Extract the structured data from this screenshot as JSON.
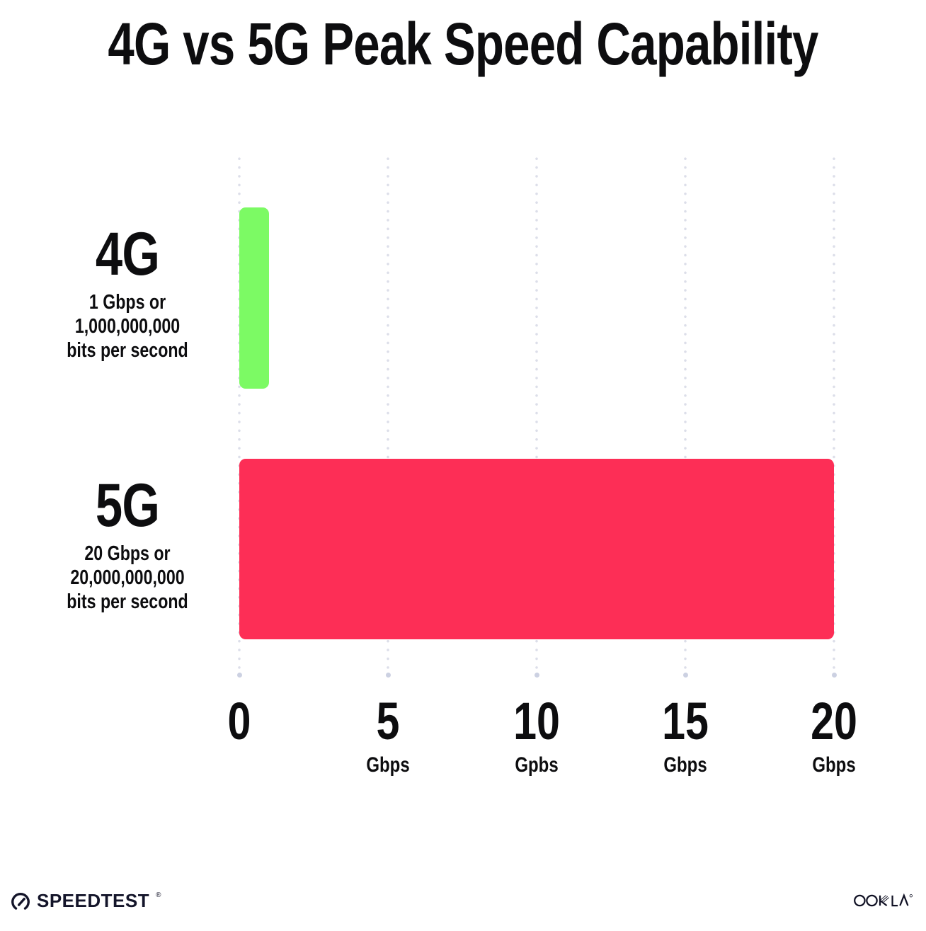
{
  "title": "4G vs 5G Peak Speed Capability",
  "chart_data": {
    "type": "bar",
    "orientation": "horizontal",
    "title": "4G vs 5G Peak Speed Capability",
    "categories": [
      "4G",
      "5G"
    ],
    "values": [
      1,
      20
    ],
    "colors": [
      "#7CFA64",
      "#FD2E56"
    ],
    "xlim": [
      0,
      20
    ],
    "x_ticks": [
      {
        "number": "0",
        "unit": ""
      },
      {
        "number": "5",
        "unit": "Gbps"
      },
      {
        "number": "10",
        "unit": "Gpbs"
      },
      {
        "number": "15",
        "unit": "Gbps"
      },
      {
        "number": "20",
        "unit": "Gbps"
      }
    ],
    "grid": "vertical dotted gridlines, light gray",
    "legend": "none",
    "annotations": [
      "4G: 1 Gbps or 1,000,000,000 bits per second",
      "5G: 20 Gbps or 20,000,000,000 bits per second"
    ]
  },
  "rows": [
    {
      "label": "4G",
      "desc": [
        "1 Gbps or",
        "1,000,000,000",
        "bits per second"
      ]
    },
    {
      "label": "5G",
      "desc": [
        "20 Gbps or",
        "20,000,000,000",
        "bits per second"
      ]
    }
  ],
  "footer": {
    "speedtest_label": "SPEEDTEST",
    "speedtest_reg": "®",
    "ookla_label": "OOKLA",
    "ookla_reg": "®"
  },
  "colors": {
    "background": "#FFFFFF",
    "text": "#0D0D0F",
    "bar_4g": "#7CFA64",
    "bar_5g": "#FD2E56",
    "gridline": "#DCDEE9",
    "logo": "#14152A"
  }
}
